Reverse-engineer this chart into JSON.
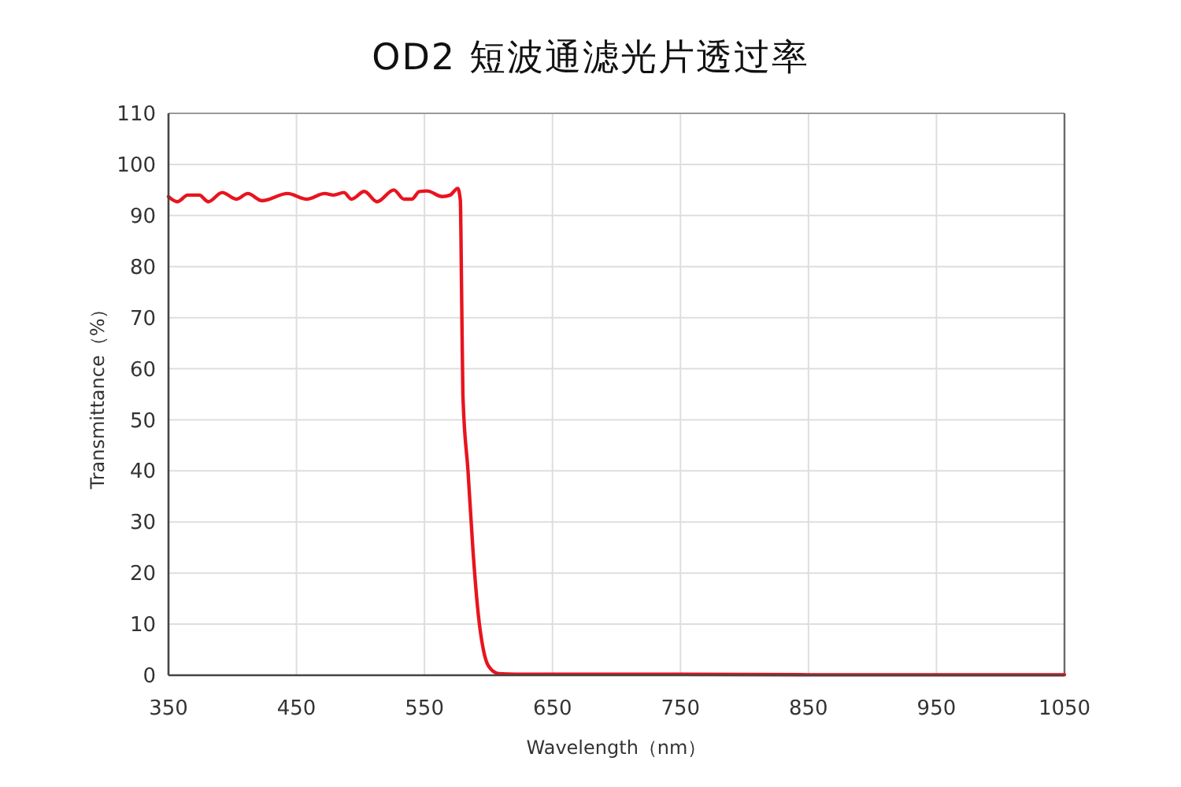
{
  "chart_data": {
    "type": "line",
    "title": "OD2 短波通滤光片透过率",
    "xlabel": "Wavelength（nm）",
    "ylabel": "Transmittance（%）",
    "x": [
      350,
      357,
      365,
      374,
      381,
      392,
      403,
      412,
      423,
      443,
      458,
      472,
      479,
      487,
      493,
      503,
      513,
      526,
      534,
      540,
      546,
      552,
      564,
      570,
      576,
      578,
      579,
      580,
      584,
      588,
      592,
      596,
      600,
      608,
      621,
      650,
      750,
      850,
      950,
      1050
    ],
    "series": [
      {
        "color": "#e8141f",
        "values": [
          93.7,
          92.7,
          94.0,
          94.0,
          92.7,
          94.5,
          93.2,
          94.3,
          92.9,
          94.3,
          93.2,
          94.3,
          94.0,
          94.5,
          93.2,
          94.7,
          92.7,
          95.0,
          93.2,
          93.2,
          94.7,
          94.8,
          93.7,
          94.0,
          95.3,
          93,
          75,
          55,
          40,
          24,
          12,
          5,
          1.8,
          0.3,
          0.2,
          0.2,
          0.2,
          0.1,
          0.1,
          0.1
        ]
      }
    ],
    "xlim": [
      350,
      1050
    ],
    "ylim": [
      0,
      110
    ],
    "xticks": [
      350,
      450,
      550,
      650,
      750,
      850,
      950,
      1050
    ],
    "yticks": [
      0,
      10,
      20,
      30,
      40,
      50,
      60,
      70,
      80,
      90,
      100,
      110
    ],
    "grid": true
  }
}
